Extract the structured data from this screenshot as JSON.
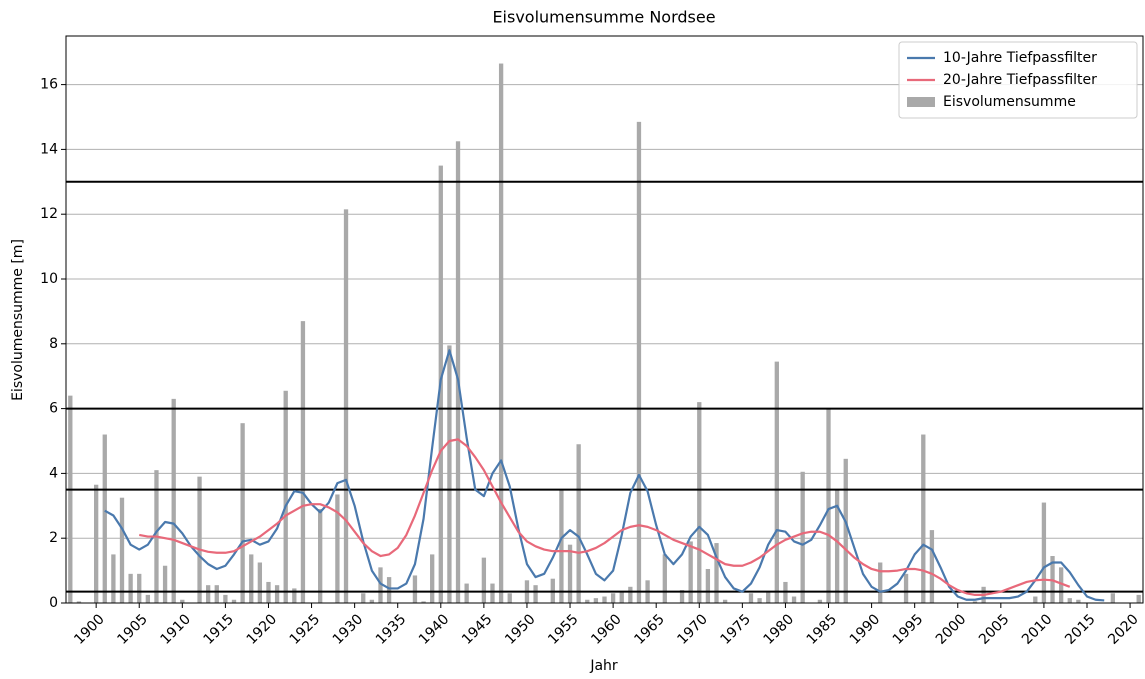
{
  "chart_data": {
    "type": "combo",
    "title": "Eisvolumensumme Nordsee",
    "x_label": "Jahr",
    "y_label": "Eisvolumensumme [m]",
    "x": [
      1897,
      1898,
      1899,
      1900,
      1901,
      1902,
      1903,
      1904,
      1905,
      1906,
      1907,
      1908,
      1909,
      1910,
      1911,
      1912,
      1913,
      1914,
      1915,
      1916,
      1917,
      1918,
      1919,
      1920,
      1921,
      1922,
      1923,
      1924,
      1925,
      1926,
      1927,
      1928,
      1929,
      1930,
      1931,
      1932,
      1933,
      1934,
      1935,
      1936,
      1937,
      1938,
      1939,
      1940,
      1941,
      1942,
      1943,
      1944,
      1945,
      1946,
      1947,
      1948,
      1949,
      1950,
      1951,
      1952,
      1953,
      1954,
      1955,
      1956,
      1957,
      1958,
      1959,
      1960,
      1961,
      1962,
      1963,
      1964,
      1965,
      1966,
      1967,
      1968,
      1969,
      1970,
      1971,
      1972,
      1973,
      1974,
      1975,
      1976,
      1977,
      1978,
      1979,
      1980,
      1981,
      1982,
      1983,
      1984,
      1985,
      1986,
      1987,
      1988,
      1989,
      1990,
      1991,
      1992,
      1993,
      1994,
      1995,
      1996,
      1997,
      1998,
      1999,
      2000,
      2001,
      2002,
      2003,
      2004,
      2005,
      2006,
      2007,
      2008,
      2009,
      2010,
      2011,
      2012,
      2013,
      2014,
      2015,
      2016,
      2017,
      2018,
      2019,
      2020,
      2021
    ],
    "series": [
      {
        "name": "10-Jahre Tiefpassfilter",
        "type": "line",
        "color": "#4a79ad",
        "values": [
          null,
          null,
          null,
          null,
          2.85,
          2.7,
          2.3,
          1.8,
          1.65,
          1.8,
          2.2,
          2.5,
          2.45,
          2.15,
          1.75,
          1.45,
          1.2,
          1.05,
          1.15,
          1.5,
          1.9,
          1.95,
          1.8,
          1.9,
          2.3,
          3.0,
          3.45,
          3.4,
          3.05,
          2.8,
          3.1,
          3.7,
          3.8,
          3.0,
          1.9,
          1.0,
          0.6,
          0.45,
          0.45,
          0.6,
          1.2,
          2.6,
          4.8,
          6.9,
          7.8,
          6.9,
          5.1,
          3.5,
          3.3,
          4.0,
          4.4,
          3.6,
          2.3,
          1.2,
          0.8,
          0.9,
          1.4,
          2.0,
          2.25,
          2.05,
          1.5,
          0.9,
          0.7,
          1.0,
          2.1,
          3.4,
          3.95,
          3.45,
          2.4,
          1.5,
          1.2,
          1.5,
          2.05,
          2.35,
          2.1,
          1.4,
          0.8,
          0.45,
          0.35,
          0.6,
          1.1,
          1.8,
          2.25,
          2.2,
          1.9,
          1.8,
          1.95,
          2.4,
          2.9,
          3.0,
          2.5,
          1.7,
          0.9,
          0.5,
          0.35,
          0.4,
          0.6,
          1.0,
          1.5,
          1.8,
          1.65,
          1.1,
          0.5,
          0.2,
          0.1,
          0.1,
          0.15,
          0.15,
          0.15,
          0.15,
          0.2,
          0.35,
          0.7,
          1.1,
          1.25,
          1.25,
          0.95,
          0.55,
          0.2,
          0.1,
          0.08,
          null,
          null,
          null,
          null
        ]
      },
      {
        "name": "20-Jahre Tiefpassfilter",
        "type": "line",
        "color": "#e8697a",
        "values": [
          null,
          null,
          null,
          null,
          null,
          null,
          null,
          null,
          2.1,
          2.05,
          2.05,
          2.0,
          1.95,
          1.85,
          1.75,
          1.65,
          1.58,
          1.55,
          1.55,
          1.6,
          1.75,
          1.9,
          2.05,
          2.25,
          2.45,
          2.7,
          2.85,
          3.0,
          3.05,
          3.05,
          2.95,
          2.8,
          2.55,
          2.2,
          1.85,
          1.6,
          1.45,
          1.5,
          1.7,
          2.1,
          2.7,
          3.4,
          4.1,
          4.7,
          5.0,
          5.05,
          4.85,
          4.5,
          4.1,
          3.6,
          3.1,
          2.65,
          2.2,
          1.9,
          1.75,
          1.65,
          1.6,
          1.6,
          1.6,
          1.55,
          1.6,
          1.7,
          1.85,
          2.05,
          2.25,
          2.35,
          2.4,
          2.35,
          2.25,
          2.1,
          1.95,
          1.85,
          1.75,
          1.65,
          1.5,
          1.35,
          1.2,
          1.15,
          1.15,
          1.25,
          1.4,
          1.6,
          1.8,
          1.95,
          2.05,
          2.15,
          2.2,
          2.2,
          2.1,
          1.9,
          1.65,
          1.4,
          1.2,
          1.05,
          0.98,
          0.98,
          1.0,
          1.05,
          1.05,
          1.0,
          0.9,
          0.75,
          0.55,
          0.4,
          0.3,
          0.25,
          0.25,
          0.3,
          0.35,
          0.45,
          0.55,
          0.65,
          0.7,
          0.72,
          0.7,
          0.6,
          0.5,
          null,
          null,
          null,
          null,
          null,
          null,
          null,
          null
        ]
      },
      {
        "name": "Eisvolumensumme",
        "type": "bar",
        "color": "#a9a9a9",
        "values": [
          6.4,
          0.05,
          0,
          3.65,
          5.2,
          1.5,
          3.25,
          0.9,
          0.9,
          0.25,
          4.1,
          1.15,
          6.3,
          0.1,
          0,
          3.9,
          0.55,
          0.55,
          0.25,
          0.1,
          5.55,
          1.5,
          1.25,
          0.65,
          0.55,
          6.55,
          0.45,
          8.7,
          0,
          2.9,
          0,
          3.35,
          12.15,
          0,
          0.3,
          0.1,
          1.1,
          0.8,
          0,
          0,
          0.85,
          0.05,
          1.5,
          13.5,
          7.95,
          14.25,
          0.6,
          0,
          1.4,
          0.6,
          16.65,
          0.3,
          0,
          0.7,
          0.55,
          0,
          0.75,
          3.5,
          1.8,
          4.9,
          0.1,
          0.15,
          0.2,
          0.3,
          0.35,
          0.5,
          14.85,
          0.7,
          0,
          1.5,
          0,
          0.4,
          1.9,
          6.2,
          1.05,
          1.85,
          0.1,
          0,
          0,
          0.3,
          0.15,
          0.35,
          7.45,
          0.65,
          0.2,
          4.05,
          0,
          0.1,
          6,
          3.5,
          4.45,
          0,
          0,
          0,
          1.25,
          0,
          0,
          0.9,
          0,
          5.2,
          2.25,
          0,
          0,
          0,
          0,
          0.05,
          0.5,
          0,
          0,
          0,
          0,
          0,
          0.2,
          3.1,
          1.45,
          1.1,
          0.15,
          0.1,
          0,
          0,
          0,
          0.3,
          0,
          0,
          0.25
        ]
      }
    ],
    "hlines": [
      0.35,
      3.5,
      6,
      13
    ],
    "hline_color": "#000000",
    "xlim": [
      1896.5,
      2021.5
    ],
    "ylim": [
      0,
      17.5
    ],
    "xticks": [
      1900,
      1905,
      1910,
      1915,
      1920,
      1925,
      1930,
      1935,
      1940,
      1945,
      1950,
      1955,
      1960,
      1965,
      1970,
      1975,
      1980,
      1985,
      1990,
      1995,
      2000,
      2005,
      2010,
      2015,
      2020
    ],
    "yticks": [
      0,
      2,
      4,
      6,
      8,
      10,
      12,
      14,
      16
    ],
    "grid": "y",
    "legend": "upper right"
  }
}
